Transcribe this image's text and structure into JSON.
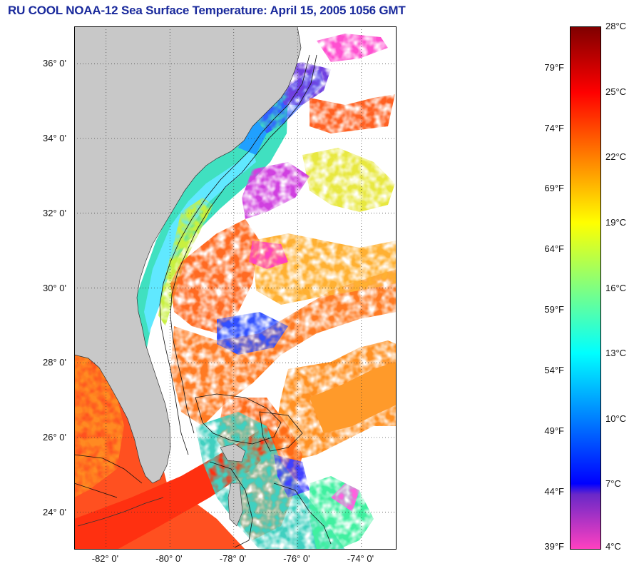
{
  "title": "RU COOL  NOAA-12  Sea Surface Temperature:  April 15, 2005 1056 GMT",
  "map": {
    "lat_min": 23.0,
    "lat_max": 37.0,
    "lon_min": -83.0,
    "lon_max": -72.9,
    "latitude_labels": [
      {
        "lat": 36,
        "text": "36° 0'"
      },
      {
        "lat": 34,
        "text": "34° 0'"
      },
      {
        "lat": 32,
        "text": "32° 0'"
      },
      {
        "lat": 30,
        "text": "30° 0'"
      },
      {
        "lat": 28,
        "text": "28° 0'"
      },
      {
        "lat": 26,
        "text": "26° 0'"
      },
      {
        "lat": 24,
        "text": "24° 0'"
      }
    ],
    "longitude_labels": [
      {
        "lon": -82,
        "text": "-82° 0'"
      },
      {
        "lon": -80,
        "text": "-80° 0'"
      },
      {
        "lon": -78,
        "text": "-78° 0'"
      },
      {
        "lon": -76,
        "text": "-76° 0'"
      },
      {
        "lon": -74,
        "text": "-74° 0'"
      }
    ],
    "land_color": "#c8c8c8",
    "no_data_color": "#ffffff"
  },
  "colorbar": {
    "celsius_min": 4,
    "celsius_max": 28,
    "celsius_labels": [
      "28°C",
      "25°C",
      "22°C",
      "19°C",
      "16°C",
      "13°C",
      "10°C",
      "7°C",
      "4°C"
    ],
    "celsius_values": [
      28,
      25,
      22,
      19,
      16,
      13,
      10,
      7,
      4
    ],
    "fahrenheit_labels": [
      "79°F",
      "74°F",
      "69°F",
      "64°F",
      "59°F",
      "54°F",
      "49°F",
      "44°F",
      "39°F"
    ],
    "fahrenheit_values": [
      79,
      74,
      69,
      64,
      59,
      54,
      49,
      44,
      39
    ],
    "color_stops": [
      {
        "t": 28,
        "color": "#800000"
      },
      {
        "t": 25,
        "color": "#ff0000"
      },
      {
        "t": 22,
        "color": "#ff8000"
      },
      {
        "t": 19,
        "color": "#ffff00"
      },
      {
        "t": 16,
        "color": "#80ff80"
      },
      {
        "t": 13,
        "color": "#00ffff"
      },
      {
        "t": 10,
        "color": "#0080ff"
      },
      {
        "t": 7,
        "color": "#0000ff"
      },
      {
        "t": 6.5,
        "color": "#6a28c8"
      },
      {
        "t": 4,
        "color": "#ff40c0"
      }
    ]
  }
}
